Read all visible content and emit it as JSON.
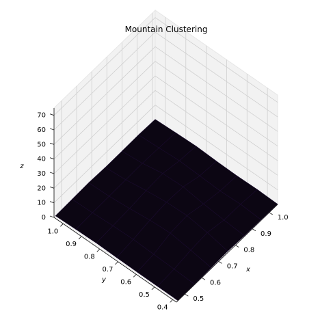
{
  "chart_data": {
    "type": "surface",
    "title": "Mountain Clustering",
    "xlabel": "x",
    "ylabel": "y",
    "zlabel": "z",
    "x_ticks": [
      "0.5",
      "0.6",
      "0.7",
      "0.8",
      "0.9",
      "1.0"
    ],
    "y_ticks": [
      "0.4",
      "0.5",
      "0.6",
      "0.7",
      "0.8",
      "0.9",
      "1.0"
    ],
    "z_ticks": [
      "0",
      "10",
      "20",
      "30",
      "40",
      "50",
      "60",
      "70"
    ],
    "xlim": [
      0.45,
      1.05
    ],
    "ylim": [
      0.38,
      1.05
    ],
    "zlim": [
      0,
      75
    ],
    "grid": true,
    "colormap": "inferno",
    "surface_color": "#0c0613",
    "surface_edge_color": "#1a0b2e",
    "pane_color": "#f2f2f2",
    "x": [
      0.45,
      0.55,
      0.65,
      0.75,
      0.85,
      0.95,
      1.05
    ],
    "y": [
      0.38,
      0.49,
      0.6,
      0.71,
      0.82,
      0.93,
      1.04
    ],
    "z": [
      [
        0.2,
        0.8,
        1.2,
        0.6,
        0.3,
        0.6,
        0.2
      ],
      [
        0.6,
        1.4,
        2.2,
        1.6,
        0.9,
        1.4,
        0.5
      ],
      [
        0.4,
        1.8,
        4.5,
        5.0,
        3.0,
        1.6,
        0.6
      ],
      [
        0.3,
        1.5,
        3.8,
        5.5,
        6.0,
        4.0,
        1.0
      ],
      [
        0.8,
        1.2,
        2.5,
        4.2,
        5.0,
        3.0,
        0.6
      ],
      [
        0.4,
        0.9,
        1.6,
        2.0,
        1.5,
        1.0,
        0.3
      ],
      [
        0.1,
        0.5,
        0.8,
        0.5,
        0.3,
        0.2,
        0.1
      ]
    ]
  }
}
